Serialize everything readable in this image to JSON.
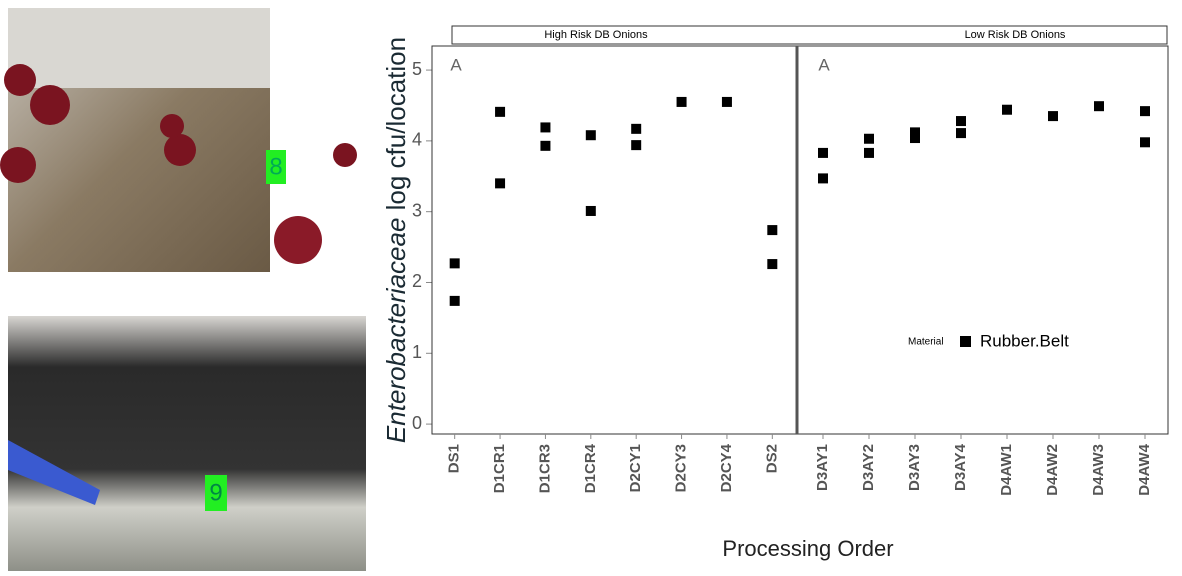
{
  "photos": [
    {
      "label": "8"
    },
    {
      "label": "9"
    }
  ],
  "chart_data": {
    "type": "scatter",
    "y_label_italic": "Enterobacteriaceae",
    "y_label": "log cfu/location",
    "x_label": "Processing Order",
    "ylim": [
      -0.14,
      5.34
    ],
    "yticks": [
      0,
      1,
      2,
      3,
      4,
      5
    ],
    "series": [
      {
        "name": "Rubber.Belt",
        "color": "#000000"
      }
    ],
    "legend_title": "Material",
    "facets": [
      {
        "strip": "High Risk DB Onions",
        "letter": "A",
        "categories": [
          "DS1",
          "D1CR1",
          "D1CR3",
          "D1CR4",
          "D2CY1",
          "D2CY3",
          "D2CY4",
          "DS2"
        ],
        "values": [
          [
            2.27,
            1.74
          ],
          [
            4.41,
            3.4
          ],
          [
            4.19,
            3.93
          ],
          [
            4.08,
            3.01
          ],
          [
            4.17,
            3.94
          ],
          [
            4.55
          ],
          [
            4.55
          ],
          [
            2.74,
            2.26
          ]
        ]
      },
      {
        "strip": "Low Risk DB Onions",
        "letter": "A",
        "categories": [
          "D3AY1",
          "D3AY2",
          "D3AY3",
          "D3AY4",
          "D4AW1",
          "D4AW2",
          "D4AW3",
          "D4AW4"
        ],
        "values": [
          [
            3.83,
            3.47
          ],
          [
            4.03,
            3.83
          ],
          [
            4.12,
            4.04
          ],
          [
            4.28,
            4.11
          ],
          [
            4.44
          ],
          [
            4.35
          ],
          [
            4.49
          ],
          [
            4.42,
            3.98
          ]
        ]
      }
    ]
  }
}
